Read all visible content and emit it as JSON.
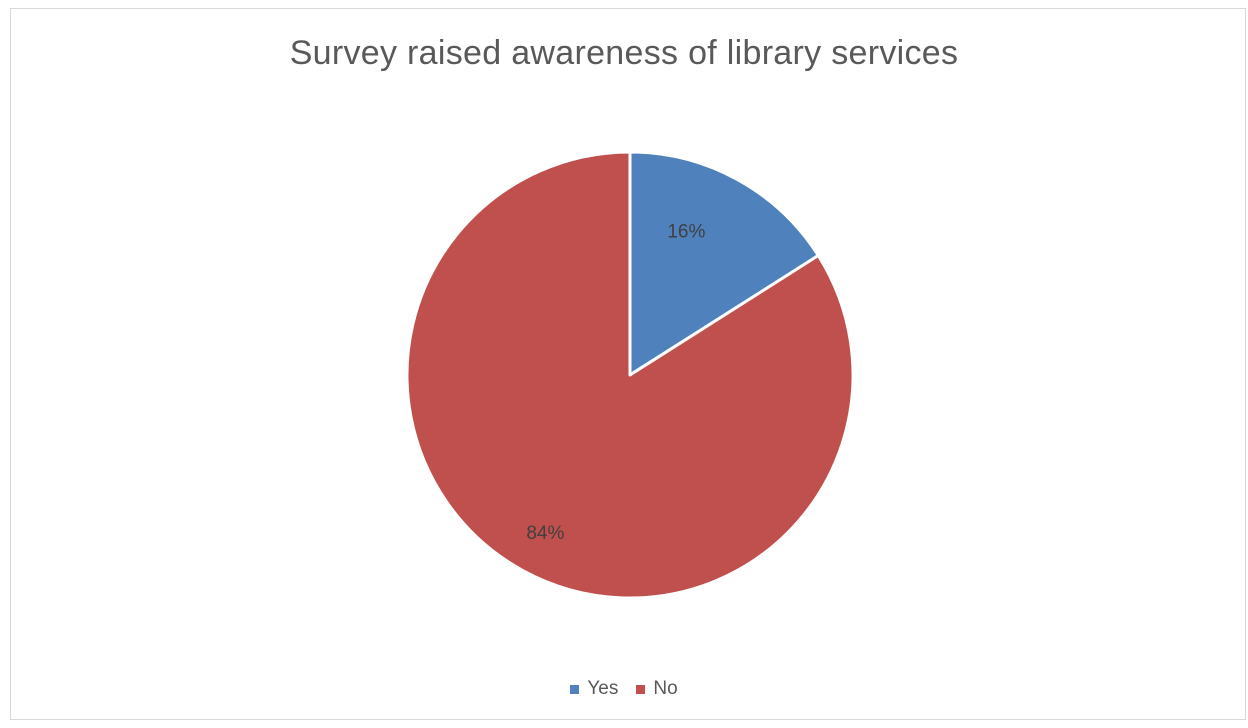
{
  "chart_data": {
    "type": "pie",
    "title": "Survey raised awareness of library services",
    "categories": [
      "Yes",
      "No"
    ],
    "values": [
      16,
      84
    ],
    "data_labels": [
      "16%",
      "84%"
    ],
    "colors": [
      "#4f81bd",
      "#c0504d"
    ],
    "start_angle": "12 o'clock",
    "direction": "clockwise",
    "legend_position": "bottom"
  }
}
